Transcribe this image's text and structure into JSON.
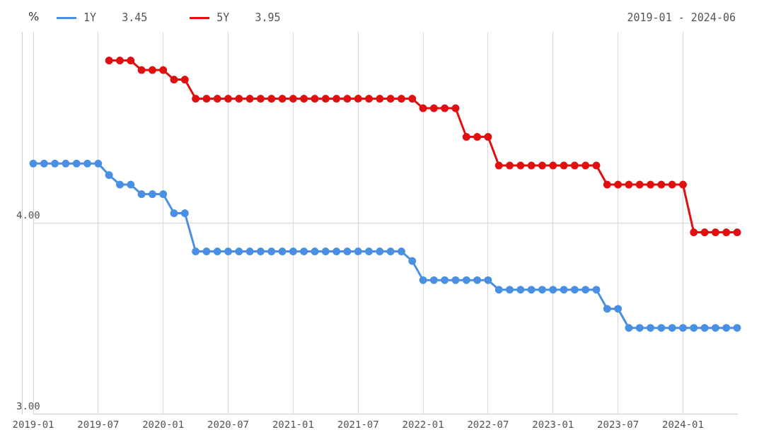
{
  "chart_data": {
    "type": "line",
    "subtitle": "2019-01 - 2024-06",
    "ylabel": "%",
    "categories": [
      "2019-01",
      null,
      null,
      null,
      null,
      null,
      "2019-07",
      null,
      null,
      null,
      null,
      null,
      "2020-01",
      null,
      null,
      null,
      null,
      null,
      "2020-07",
      null,
      null,
      null,
      null,
      null,
      "2021-01",
      null,
      null,
      null,
      null,
      null,
      "2021-07",
      null,
      null,
      null,
      null,
      null,
      "2022-01",
      null,
      null,
      null,
      null,
      null,
      "2022-07",
      null,
      null,
      null,
      null,
      null,
      "2023-01",
      null,
      null,
      null,
      null,
      null,
      "2023-07",
      null,
      null,
      null,
      null,
      null,
      "2024-01",
      null,
      null,
      null,
      null,
      null
    ],
    "series": [
      {
        "name": "1Y    3.45",
        "color": "#4a90e2",
        "values": [
          4.31,
          4.31,
          4.31,
          4.31,
          4.31,
          4.31,
          4.31,
          4.25,
          4.2,
          4.2,
          4.15,
          4.15,
          4.15,
          4.05,
          4.05,
          3.85,
          3.85,
          3.85,
          3.85,
          3.85,
          3.85,
          3.85,
          3.85,
          3.85,
          3.85,
          3.85,
          3.85,
          3.85,
          3.85,
          3.85,
          3.85,
          3.85,
          3.85,
          3.85,
          3.85,
          3.8,
          3.7,
          3.7,
          3.7,
          3.7,
          3.7,
          3.7,
          3.7,
          3.65,
          3.65,
          3.65,
          3.65,
          3.65,
          3.65,
          3.65,
          3.65,
          3.65,
          3.65,
          3.55,
          3.55,
          3.45,
          3.45,
          3.45,
          3.45,
          3.45,
          3.45,
          3.45,
          3.45,
          3.45,
          3.45,
          3.45
        ]
      },
      {
        "name": "5Y    3.95",
        "color": "#e01010",
        "values": [
          null,
          null,
          null,
          null,
          null,
          null,
          null,
          4.85,
          4.85,
          4.85,
          4.8,
          4.8,
          4.8,
          4.75,
          4.75,
          4.65,
          4.65,
          4.65,
          4.65,
          4.65,
          4.65,
          4.65,
          4.65,
          4.65,
          4.65,
          4.65,
          4.65,
          4.65,
          4.65,
          4.65,
          4.65,
          4.65,
          4.65,
          4.65,
          4.65,
          4.65,
          4.6,
          4.6,
          4.6,
          4.6,
          4.45,
          4.45,
          4.45,
          4.3,
          4.3,
          4.3,
          4.3,
          4.3,
          4.3,
          4.3,
          4.3,
          4.3,
          4.3,
          4.2,
          4.2,
          4.2,
          4.2,
          4.2,
          4.2,
          4.2,
          4.2,
          3.95,
          3.95,
          3.95,
          3.95,
          3.95
        ]
      }
    ],
    "ylim": [
      3,
      5
    ],
    "yticks": [
      {
        "value": 3,
        "label": "3.00"
      },
      {
        "value": 4,
        "label": "4.00"
      }
    ],
    "grid": true,
    "legend": "top left",
    "marker": "circle",
    "line_style": "solid"
  }
}
